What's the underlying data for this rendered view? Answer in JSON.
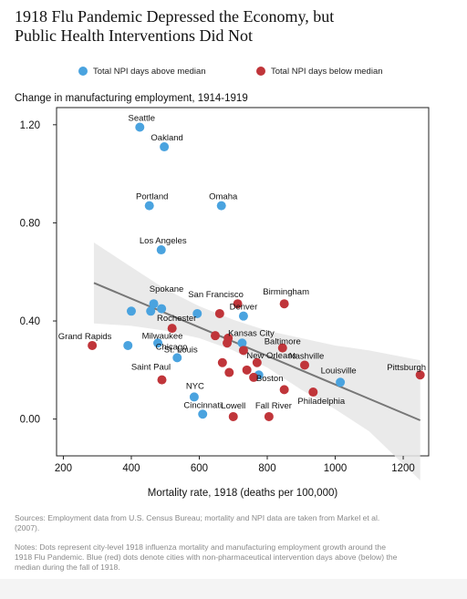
{
  "title_line1": "1918 Flu Pandemic Depressed the Economy, but",
  "title_line2": "Public Health Interventions Did Not",
  "legend": [
    {
      "label": "Total NPI days above median",
      "color": "#4aa3df"
    },
    {
      "label": "Total NPI days below median",
      "color": "#c0353a"
    }
  ],
  "sources": "Sources: Employment data from U.S. Census Bureau; mortality and NPI data are taken from Markel et al. (2007).",
  "notes": "Notes: Dots represent city-level 1918 influenza mortality and manufacturing employment growth around the 1918 Flu Pandemic. Blue (red) dots denote cities with non-pharmaceutical intervention days above (below) the median during the fall of 1918.",
  "chart_data": {
    "type": "scatter",
    "ylabel": "Change in manufacturing employment, 1914-1919",
    "xlabel": "Mortality rate, 1918 (deaths per 100,000)",
    "xlim": [
      180,
      1275
    ],
    "ylim": [
      -0.15,
      1.27
    ],
    "xticks": [
      200,
      400,
      600,
      800,
      1000,
      1200
    ],
    "yticks": [
      0.0,
      0.4,
      0.8,
      1.2
    ],
    "xtick_labels": [
      "200",
      "400",
      "600",
      "800",
      "1000",
      "1200"
    ],
    "ytick_labels": [
      "0.00",
      "0.40",
      "0.80",
      "1.20"
    ],
    "grid": false,
    "fit_line": {
      "x": [
        290,
        1250
      ],
      "y": [
        0.555,
        -0.005
      ]
    },
    "confidence_band": {
      "x": [
        290,
        400,
        500,
        600,
        700,
        800,
        900,
        1000,
        1100,
        1250
      ],
      "upper": [
        0.72,
        0.62,
        0.53,
        0.46,
        0.405,
        0.36,
        0.33,
        0.3,
        0.28,
        0.24
      ],
      "lower": [
        0.39,
        0.38,
        0.36,
        0.33,
        0.28,
        0.21,
        0.12,
        0.04,
        -0.05,
        -0.25
      ]
    },
    "series": [
      {
        "color": "#4aa3df",
        "points": [
          {
            "x": 425,
            "y": 1.19
          },
          {
            "x": 497,
            "y": 1.11
          },
          {
            "x": 453,
            "y": 0.87
          },
          {
            "x": 665,
            "y": 0.87
          },
          {
            "x": 488,
            "y": 0.69
          },
          {
            "x": 400,
            "y": 0.44
          },
          {
            "x": 457,
            "y": 0.44
          },
          {
            "x": 466,
            "y": 0.47
          },
          {
            "x": 489,
            "y": 0.45
          },
          {
            "x": 594,
            "y": 0.43
          },
          {
            "x": 730,
            "y": 0.42
          },
          {
            "x": 390,
            "y": 0.3
          },
          {
            "x": 478,
            "y": 0.31
          },
          {
            "x": 726,
            "y": 0.31
          },
          {
            "x": 535,
            "y": 0.25
          },
          {
            "x": 775,
            "y": 0.18
          },
          {
            "x": 1015,
            "y": 0.15
          },
          {
            "x": 585,
            "y": 0.09
          },
          {
            "x": 610,
            "y": 0.02
          }
        ]
      },
      {
        "color": "#c0353a",
        "points": [
          {
            "x": 285,
            "y": 0.3
          },
          {
            "x": 713,
            "y": 0.47
          },
          {
            "x": 850,
            "y": 0.47
          },
          {
            "x": 660,
            "y": 0.43
          },
          {
            "x": 520,
            "y": 0.37
          },
          {
            "x": 647,
            "y": 0.34
          },
          {
            "x": 685,
            "y": 0.33
          },
          {
            "x": 682,
            "y": 0.31
          },
          {
            "x": 730,
            "y": 0.28
          },
          {
            "x": 845,
            "y": 0.29
          },
          {
            "x": 668,
            "y": 0.23
          },
          {
            "x": 770,
            "y": 0.23
          },
          {
            "x": 740,
            "y": 0.2
          },
          {
            "x": 688,
            "y": 0.19
          },
          {
            "x": 760,
            "y": 0.17
          },
          {
            "x": 910,
            "y": 0.22
          },
          {
            "x": 490,
            "y": 0.16
          },
          {
            "x": 850,
            "y": 0.12
          },
          {
            "x": 935,
            "y": 0.11
          },
          {
            "x": 1250,
            "y": 0.18
          },
          {
            "x": 700,
            "y": 0.01
          },
          {
            "x": 805,
            "y": 0.01
          }
        ]
      }
    ],
    "annotations": [
      {
        "text": "Seattle",
        "x": 425,
        "y": 1.19
      },
      {
        "text": "Oakland",
        "x": 497,
        "y": 1.11
      },
      {
        "text": "Portland",
        "x": 453,
        "y": 0.87
      },
      {
        "text": "Omaha",
        "x": 665,
        "y": 0.87
      },
      {
        "text": "Los Angeles",
        "x": 488,
        "y": 0.69
      },
      {
        "text": "Spokane",
        "x": 466,
        "y": 0.47
      },
      {
        "text": "Birmingham",
        "x": 850,
        "y": 0.47
      },
      {
        "text": "San Francisco",
        "x": 713,
        "y": 0.47
      },
      {
        "text": "Rochester",
        "x": 520,
        "y": 0.37
      },
      {
        "text": "Denver",
        "x": 730,
        "y": 0.42
      },
      {
        "text": "Grand Rapids",
        "x": 285,
        "y": 0.3
      },
      {
        "text": "Milwaukee",
        "x": 478,
        "y": 0.31
      },
      {
        "text": "Kansas City",
        "x": 726,
        "y": 0.31
      },
      {
        "text": "Baltimore",
        "x": 845,
        "y": 0.29
      },
      {
        "text": "Chicago",
        "x": 478,
        "y": 0.31
      },
      {
        "text": "St. Louis",
        "x": 535,
        "y": 0.25
      },
      {
        "text": "Nashville",
        "x": 910,
        "y": 0.22
      },
      {
        "text": "New Orleans",
        "x": 770,
        "y": 0.23
      },
      {
        "text": "Pittsburgh",
        "x": 1250,
        "y": 0.18
      },
      {
        "text": "Saint Paul",
        "x": 490,
        "y": 0.16
      },
      {
        "text": "Boston",
        "x": 775,
        "y": 0.18
      },
      {
        "text": "Louisville",
        "x": 1015,
        "y": 0.15
      },
      {
        "text": "NYC",
        "x": 585,
        "y": 0.09
      },
      {
        "text": "Philadelphia",
        "x": 935,
        "y": 0.11
      },
      {
        "text": "Cincinnati",
        "x": 610,
        "y": 0.02
      },
      {
        "text": "Lowell",
        "x": 700,
        "y": 0.01
      },
      {
        "text": "Fall River",
        "x": 805,
        "y": 0.01
      }
    ]
  }
}
